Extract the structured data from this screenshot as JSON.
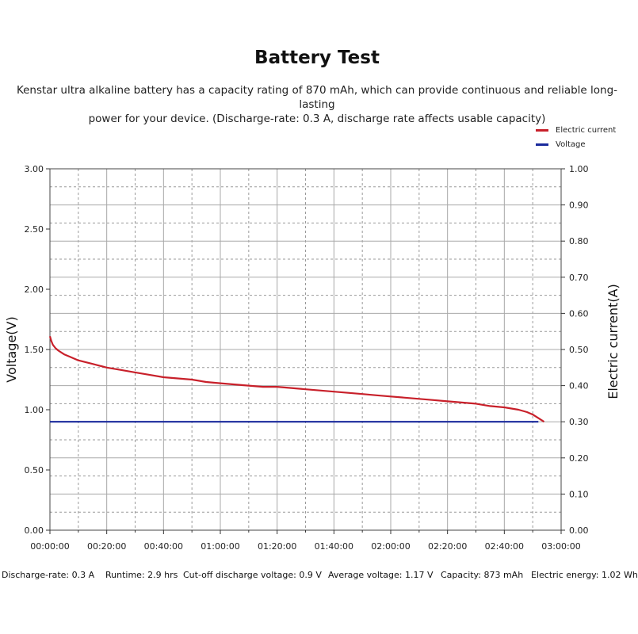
{
  "title": "Battery Test",
  "subtitle_line1": "Kenstar ultra alkaline battery has a capacity rating of 870 mAh, which can provide continuous and reliable long-lasting",
  "subtitle_line2": "power for your device. (Discharge-rate: 0.3 A, discharge rate affects usable capacity)",
  "legend": [
    {
      "label": "Electric current",
      "color": "#c8202a"
    },
    {
      "label": "Voltage",
      "color": "#1a2a9c"
    }
  ],
  "footer": [
    "Discharge-rate: 0.3 A",
    "Runtime: 2.9 hrs",
    "Cut-off discharge voltage: 0.9 V",
    "Average voltage: 1.17 V",
    "Capacity: 873 mAh",
    "Electric energy: 1.02 Wh"
  ],
  "chart_data": {
    "type": "line",
    "ylabel": "Voltage(V)",
    "y2label": "Electric current(A)",
    "ylim": [
      0,
      3
    ],
    "y2lim": [
      0,
      1
    ],
    "xlim_min": [
      0,
      180
    ],
    "x_ticks": [
      "00:00:00",
      "00:20:00",
      "00:40:00",
      "01:00:00",
      "01:20:00",
      "01:40:00",
      "02:00:00",
      "02:20:00",
      "02:40:00",
      "03:00:00"
    ],
    "y_ticks": [
      "0.00",
      "0.50",
      "1.00",
      "1.50",
      "2.00",
      "2.50",
      "3.00"
    ],
    "y2_ticks": [
      "0.00",
      "0.10",
      "0.20",
      "0.30",
      "0.40",
      "0.50",
      "0.60",
      "0.70",
      "0.80",
      "0.90",
      "1.00"
    ],
    "grid": true,
    "legend_position": "top-right",
    "series": [
      {
        "name": "Electric current",
        "color": "#c8202a",
        "axis": "left",
        "x_min": [
          0,
          0.5,
          1,
          2,
          3,
          5,
          7,
          10,
          15,
          20,
          25,
          30,
          35,
          40,
          45,
          50,
          55,
          60,
          65,
          70,
          75,
          80,
          85,
          90,
          95,
          100,
          105,
          110,
          115,
          120,
          125,
          130,
          135,
          140,
          145,
          150,
          155,
          160,
          165,
          168,
          170,
          172,
          174
        ],
        "values": [
          1.61,
          1.57,
          1.54,
          1.51,
          1.49,
          1.46,
          1.44,
          1.41,
          1.38,
          1.35,
          1.33,
          1.31,
          1.29,
          1.27,
          1.26,
          1.25,
          1.23,
          1.22,
          1.21,
          1.2,
          1.19,
          1.19,
          1.18,
          1.17,
          1.16,
          1.15,
          1.14,
          1.13,
          1.12,
          1.11,
          1.1,
          1.09,
          1.08,
          1.07,
          1.06,
          1.05,
          1.03,
          1.02,
          1.0,
          0.98,
          0.96,
          0.93,
          0.9
        ]
      },
      {
        "name": "Voltage",
        "color": "#1a2a9c",
        "axis": "right",
        "x_min": [
          0,
          172
        ],
        "values": [
          0.3,
          0.3
        ]
      }
    ]
  }
}
